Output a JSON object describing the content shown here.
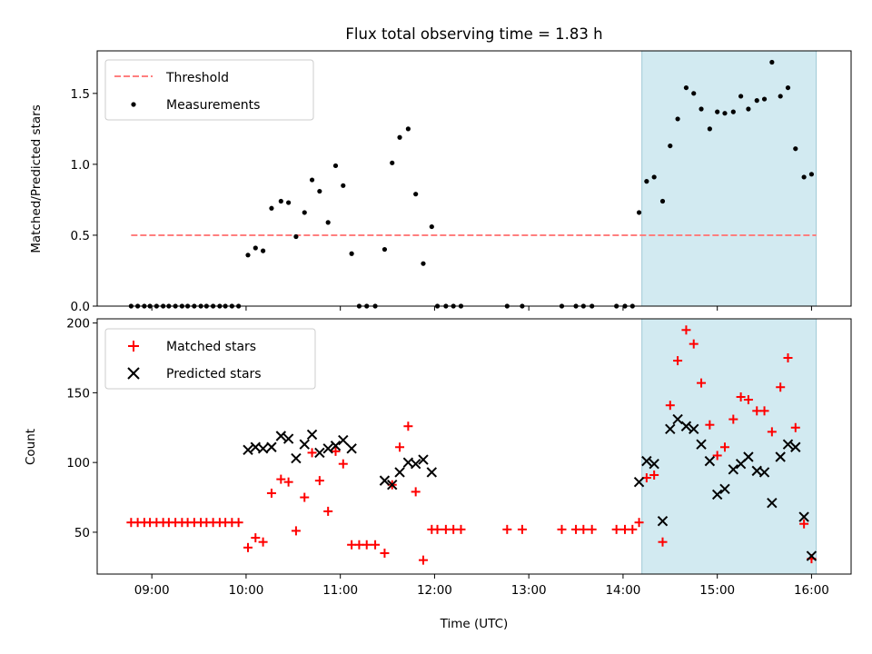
{
  "chart_data": [
    {
      "type": "scatter",
      "title": "Flux total observing time = 1.83 h",
      "xlabel": "",
      "ylabel": "Matched/Predicted stars",
      "xlim": [
        8.42,
        16.42
      ],
      "ylim": [
        0,
        1.8
      ],
      "yticks": [
        0.0,
        0.5,
        1.0,
        1.5
      ],
      "ytick_labels": [
        "0.0",
        "0.5",
        "1.0",
        "1.5"
      ],
      "threshold": {
        "value": 0.5,
        "x_from": 8.78,
        "x_to": 16.05,
        "color": "#ff7f7f",
        "label": "Threshold"
      },
      "highlight": {
        "x_from": 14.2,
        "x_to": 16.05,
        "color": "#add8e6"
      },
      "legend": {
        "placement": "top-left",
        "entries": [
          "Threshold",
          "Measurements"
        ]
      },
      "series": [
        {
          "name": "Measurements",
          "marker": "dot",
          "color": "#000000",
          "points": [
            [
              8.78,
              0
            ],
            [
              8.85,
              0
            ],
            [
              8.92,
              0
            ],
            [
              8.98,
              0
            ],
            [
              9.05,
              0
            ],
            [
              9.12,
              0
            ],
            [
              9.18,
              0
            ],
            [
              9.25,
              0
            ],
            [
              9.32,
              0
            ],
            [
              9.38,
              0
            ],
            [
              9.45,
              0
            ],
            [
              9.52,
              0
            ],
            [
              9.58,
              0
            ],
            [
              9.65,
              0
            ],
            [
              9.72,
              0
            ],
            [
              9.78,
              0
            ],
            [
              9.85,
              0
            ],
            [
              9.92,
              0
            ],
            [
              10.02,
              0.36
            ],
            [
              10.1,
              0.41
            ],
            [
              10.18,
              0.39
            ],
            [
              10.27,
              0.69
            ],
            [
              10.37,
              0.74
            ],
            [
              10.45,
              0.73
            ],
            [
              10.53,
              0.49
            ],
            [
              10.62,
              0.66
            ],
            [
              10.7,
              0.89
            ],
            [
              10.78,
              0.81
            ],
            [
              10.87,
              0.59
            ],
            [
              10.95,
              0.99
            ],
            [
              11.03,
              0.85
            ],
            [
              11.12,
              0.37
            ],
            [
              11.2,
              0
            ],
            [
              11.28,
              0
            ],
            [
              11.37,
              0
            ],
            [
              11.47,
              0.4
            ],
            [
              11.55,
              1.01
            ],
            [
              11.63,
              1.19
            ],
            [
              11.72,
              1.25
            ],
            [
              11.8,
              0.79
            ],
            [
              11.88,
              0.3
            ],
            [
              11.97,
              0.56
            ],
            [
              12.03,
              0
            ],
            [
              12.12,
              0
            ],
            [
              12.2,
              0
            ],
            [
              12.28,
              0
            ],
            [
              12.77,
              0
            ],
            [
              12.93,
              0
            ],
            [
              13.35,
              0
            ],
            [
              13.5,
              0
            ],
            [
              13.58,
              0
            ],
            [
              13.67,
              0
            ],
            [
              13.93,
              0
            ],
            [
              14.02,
              0
            ],
            [
              14.1,
              0
            ],
            [
              14.17,
              0.66
            ],
            [
              14.25,
              0.88
            ],
            [
              14.33,
              0.91
            ],
            [
              14.42,
              0.74
            ],
            [
              14.5,
              1.13
            ],
            [
              14.58,
              1.32
            ],
            [
              14.67,
              1.54
            ],
            [
              14.75,
              1.5
            ],
            [
              14.83,
              1.39
            ],
            [
              14.92,
              1.25
            ],
            [
              15.0,
              1.37
            ],
            [
              15.08,
              1.36
            ],
            [
              15.17,
              1.37
            ],
            [
              15.25,
              1.48
            ],
            [
              15.33,
              1.39
            ],
            [
              15.42,
              1.45
            ],
            [
              15.5,
              1.46
            ],
            [
              15.58,
              1.72
            ],
            [
              15.67,
              1.48
            ],
            [
              15.75,
              1.54
            ],
            [
              15.83,
              1.11
            ],
            [
              15.92,
              0.91
            ],
            [
              16.0,
              0.93
            ]
          ]
        }
      ]
    },
    {
      "type": "scatter",
      "title": "",
      "xlabel": "Time (UTC)",
      "ylabel": "Count",
      "xlim": [
        8.42,
        16.42
      ],
      "ylim": [
        20,
        203
      ],
      "yticks": [
        50,
        100,
        150,
        200
      ],
      "ytick_labels": [
        "50",
        "100",
        "150",
        "200"
      ],
      "xticks": [
        9,
        10,
        11,
        12,
        13,
        14,
        15,
        16
      ],
      "xtick_labels": [
        "09:00",
        "10:00",
        "11:00",
        "12:00",
        "13:00",
        "14:00",
        "15:00",
        "16:00"
      ],
      "highlight": {
        "x_from": 14.2,
        "x_to": 16.05,
        "color": "#add8e6"
      },
      "legend": {
        "placement": "top-left",
        "entries": [
          "Matched stars",
          "Predicted stars"
        ]
      },
      "series": [
        {
          "name": "Matched stars",
          "marker": "plus",
          "color": "#ff0000",
          "points": [
            [
              8.78,
              57
            ],
            [
              8.85,
              57
            ],
            [
              8.92,
              57
            ],
            [
              8.98,
              57
            ],
            [
              9.05,
              57
            ],
            [
              9.12,
              57
            ],
            [
              9.18,
              57
            ],
            [
              9.25,
              57
            ],
            [
              9.32,
              57
            ],
            [
              9.38,
              57
            ],
            [
              9.45,
              57
            ],
            [
              9.52,
              57
            ],
            [
              9.58,
              57
            ],
            [
              9.65,
              57
            ],
            [
              9.72,
              57
            ],
            [
              9.78,
              57
            ],
            [
              9.85,
              57
            ],
            [
              9.92,
              57
            ],
            [
              10.02,
              39
            ],
            [
              10.1,
              46
            ],
            [
              10.18,
              43
            ],
            [
              10.27,
              78
            ],
            [
              10.37,
              88
            ],
            [
              10.45,
              86
            ],
            [
              10.53,
              51
            ],
            [
              10.62,
              75
            ],
            [
              10.7,
              107
            ],
            [
              10.78,
              87
            ],
            [
              10.87,
              65
            ],
            [
              10.95,
              108
            ],
            [
              11.03,
              99
            ],
            [
              11.12,
              41
            ],
            [
              11.2,
              41
            ],
            [
              11.28,
              41
            ],
            [
              11.37,
              41
            ],
            [
              11.47,
              35
            ],
            [
              11.55,
              84
            ],
            [
              11.63,
              111
            ],
            [
              11.72,
              126
            ],
            [
              11.8,
              79
            ],
            [
              11.88,
              30
            ],
            [
              11.97,
              52
            ],
            [
              12.03,
              52
            ],
            [
              12.12,
              52
            ],
            [
              12.2,
              52
            ],
            [
              12.28,
              52
            ],
            [
              12.77,
              52
            ],
            [
              12.93,
              52
            ],
            [
              13.35,
              52
            ],
            [
              13.5,
              52
            ],
            [
              13.58,
              52
            ],
            [
              13.67,
              52
            ],
            [
              13.93,
              52
            ],
            [
              14.02,
              52
            ],
            [
              14.1,
              52
            ],
            [
              14.17,
              57
            ],
            [
              14.25,
              89
            ],
            [
              14.33,
              91
            ],
            [
              14.42,
              43
            ],
            [
              14.5,
              141
            ],
            [
              14.58,
              173
            ],
            [
              14.67,
              195
            ],
            [
              14.75,
              185
            ],
            [
              14.83,
              157
            ],
            [
              14.92,
              127
            ],
            [
              15.0,
              105
            ],
            [
              15.08,
              111
            ],
            [
              15.17,
              131
            ],
            [
              15.25,
              147
            ],
            [
              15.33,
              145
            ],
            [
              15.42,
              137
            ],
            [
              15.5,
              137
            ],
            [
              15.58,
              122
            ],
            [
              15.67,
              154
            ],
            [
              15.75,
              175
            ],
            [
              15.83,
              125
            ],
            [
              15.92,
              56
            ],
            [
              16.0,
              31
            ]
          ]
        },
        {
          "name": "Predicted stars",
          "marker": "x",
          "color": "#000000",
          "points": [
            [
              10.02,
              109
            ],
            [
              10.1,
              111
            ],
            [
              10.18,
              110
            ],
            [
              10.27,
              111
            ],
            [
              10.37,
              119
            ],
            [
              10.45,
              117
            ],
            [
              10.53,
              103
            ],
            [
              10.62,
              113
            ],
            [
              10.7,
              120
            ],
            [
              10.78,
              107
            ],
            [
              10.87,
              110
            ],
            [
              10.95,
              112
            ],
            [
              11.03,
              116
            ],
            [
              11.12,
              110
            ],
            [
              11.47,
              87
            ],
            [
              11.55,
              84
            ],
            [
              11.63,
              93
            ],
            [
              11.72,
              100
            ],
            [
              11.8,
              99
            ],
            [
              11.88,
              102
            ],
            [
              11.97,
              93
            ],
            [
              14.17,
              86
            ],
            [
              14.25,
              101
            ],
            [
              14.33,
              99
            ],
            [
              14.42,
              58
            ],
            [
              14.5,
              124
            ],
            [
              14.58,
              131
            ],
            [
              14.67,
              126
            ],
            [
              14.75,
              124
            ],
            [
              14.83,
              113
            ],
            [
              14.92,
              101
            ],
            [
              15.0,
              77
            ],
            [
              15.08,
              81
            ],
            [
              15.17,
              95
            ],
            [
              15.25,
              99
            ],
            [
              15.33,
              104
            ],
            [
              15.42,
              94
            ],
            [
              15.5,
              93
            ],
            [
              15.58,
              71
            ],
            [
              15.67,
              104
            ],
            [
              15.75,
              113
            ],
            [
              15.83,
              111
            ],
            [
              15.92,
              61
            ],
            [
              16.0,
              33
            ]
          ]
        }
      ]
    }
  ]
}
